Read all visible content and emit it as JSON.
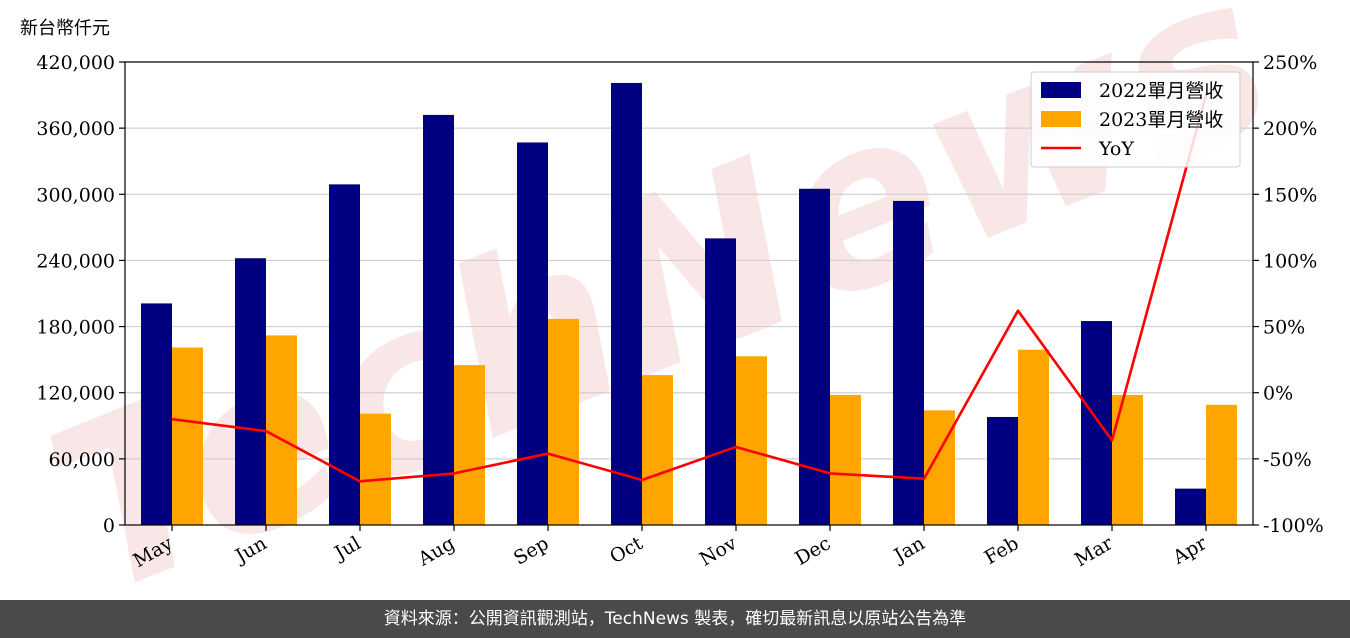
{
  "chart_data": {
    "type": "bar",
    "unit_label": "新台幣仟元",
    "categories": [
      "May",
      "Jun",
      "Jul",
      "Aug",
      "Sep",
      "Oct",
      "Nov",
      "Dec",
      "Jan",
      "Feb",
      "Mar",
      "Apr"
    ],
    "series": [
      {
        "name": "2022單月營收",
        "type": "bar",
        "axis": "left",
        "color": "#000080",
        "values": [
          201000,
          242000,
          309000,
          372000,
          347000,
          401000,
          260000,
          305000,
          294000,
          98000,
          185000,
          33000
        ]
      },
      {
        "name": "2023單月營收",
        "type": "bar",
        "axis": "left",
        "color": "#FFA500",
        "values": [
          161000,
          172000,
          101000,
          145000,
          187000,
          136000,
          153000,
          118000,
          104000,
          159000,
          118000,
          109000
        ]
      },
      {
        "name": "YoY",
        "type": "line",
        "axis": "right",
        "color": "#FF0000",
        "values": [
          -20,
          -29,
          -67,
          -61,
          -46,
          -66,
          -41,
          -61,
          -65,
          62,
          -36,
          225
        ]
      }
    ],
    "y_left": {
      "min": 0,
      "max": 420000,
      "ticks": [
        0,
        60000,
        120000,
        180000,
        240000,
        300000,
        360000,
        420000
      ],
      "tick_labels": [
        "0",
        "60,000",
        "120,000",
        "180,000",
        "240,000",
        "300,000",
        "360,000",
        "420,000"
      ]
    },
    "y_right": {
      "min": -100,
      "max": 250,
      "ticks": [
        -100,
        -50,
        0,
        50,
        100,
        150,
        200,
        250
      ],
      "tick_labels": [
        "-100%",
        "-50%",
        "0%",
        "50%",
        "100%",
        "150%",
        "200%",
        "250%"
      ]
    },
    "grid": "horizontal",
    "legend_position": "top-right"
  },
  "watermark": "TechNews",
  "footer": {
    "text": "資料來源：公開資訊觀測站，TechNews 製表，確切最新訊息以原站公告為準"
  }
}
